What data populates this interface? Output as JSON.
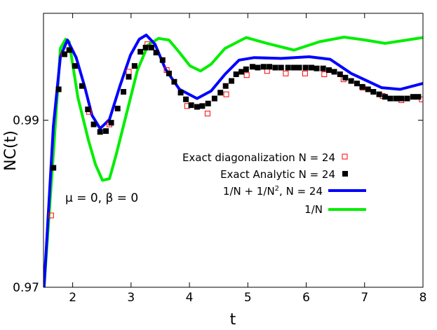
{
  "chart_data": {
    "type": "line",
    "xlabel": "t",
    "ylabel": "NC(t)",
    "xlim": [
      1.5,
      8
    ],
    "ylim": [
      0.97,
      1.0028
    ],
    "xticks": [
      2,
      3,
      4,
      5,
      6,
      7,
      8
    ],
    "yticks": [
      0.97,
      0.99
    ],
    "ytick_labels": [
      "0.97",
      "0.99"
    ],
    "grid": false,
    "legend_placement": "center-right",
    "annotation": "μ = 0, β = 0",
    "series": [
      {
        "name": "Exact diagonalization N = 24",
        "style": "open-square",
        "color": "#ff0000",
        "x": [
          1.63,
          1.85,
          2.28,
          2.63,
          2.96,
          3.28,
          3.61,
          3.96,
          4.31,
          4.63,
          4.98,
          5.33,
          5.65,
          5.98,
          6.31,
          6.64,
          6.97,
          7.31,
          7.63,
          7.98
        ],
        "y": [
          0.9786,
          0.9979,
          0.991,
          0.9895,
          0.9958,
          0.9991,
          0.996,
          0.9917,
          0.9908,
          0.9931,
          0.9954,
          0.9959,
          0.9956,
          0.9956,
          0.9955,
          0.9949,
          0.9939,
          0.9929,
          0.9924,
          0.9925
        ]
      },
      {
        "name": "Exact Analytic N = 24",
        "style": "filled-square",
        "color": "#000000",
        "x": [
          1.67,
          1.76,
          1.86,
          1.94,
          2.04,
          2.16,
          2.26,
          2.36,
          2.47,
          2.57,
          2.66,
          2.77,
          2.87,
          2.96,
          3.06,
          3.16,
          3.25,
          3.35,
          3.43,
          3.54,
          3.65,
          3.74,
          3.85,
          3.94,
          4.03,
          4.13,
          4.22,
          4.32,
          4.43,
          4.53,
          4.62,
          4.72,
          4.8,
          4.89,
          4.97,
          5.08,
          5.17,
          5.27,
          5.37,
          5.47,
          5.57,
          5.69,
          5.79,
          5.88,
          5.99,
          6.09,
          6.18,
          6.29,
          6.39,
          6.48,
          6.58,
          6.67,
          6.77,
          6.87,
          6.96,
          7.06,
          7.15,
          7.25,
          7.35,
          7.44,
          7.54,
          7.63,
          7.73,
          7.83,
          7.92
        ],
        "y": [
          0.9843,
          0.9937,
          0.9979,
          0.9984,
          0.9965,
          0.9941,
          0.9913,
          0.9895,
          0.9886,
          0.9887,
          0.9897,
          0.9914,
          0.9934,
          0.9952,
          0.9965,
          0.9982,
          0.9987,
          0.9987,
          0.9981,
          0.9972,
          0.9956,
          0.9946,
          0.9933,
          0.9925,
          0.9918,
          0.9916,
          0.9917,
          0.992,
          0.9926,
          0.9933,
          0.9941,
          0.9947,
          0.9955,
          0.9958,
          0.9961,
          0.9964,
          0.9963,
          0.9964,
          0.9964,
          0.9963,
          0.9963,
          0.9963,
          0.9963,
          0.9963,
          0.9963,
          0.9963,
          0.9962,
          0.9962,
          0.996,
          0.9958,
          0.9955,
          0.9951,
          0.9947,
          0.9944,
          0.994,
          0.9937,
          0.9934,
          0.9931,
          0.9928,
          0.9926,
          0.9926,
          0.9926,
          0.9926,
          0.9928,
          0.9928
        ]
      },
      {
        "name": "1/N + 1/N^2, N = 24",
        "name_parts": [
          "1/N + 1/N",
          "2",
          ", N = 24"
        ],
        "style": "line",
        "color": "#0000ff",
        "x": [
          1.51,
          1.67,
          1.79,
          1.91,
          2.06,
          2.21,
          2.33,
          2.47,
          2.63,
          2.81,
          2.99,
          3.14,
          3.26,
          3.41,
          3.59,
          3.83,
          4.13,
          4.37,
          4.61,
          4.85,
          5.11,
          5.57,
          6.05,
          6.41,
          6.77,
          7.29,
          7.61,
          8.0
        ],
        "y": [
          0.97,
          0.9893,
          0.9976,
          0.9996,
          0.9975,
          0.9939,
          0.9906,
          0.989,
          0.9901,
          0.9941,
          0.9978,
          0.9997,
          1.0002,
          0.9991,
          0.9961,
          0.9937,
          0.9926,
          0.9935,
          0.9955,
          0.9972,
          0.9975,
          0.9974,
          0.9976,
          0.9973,
          0.9956,
          0.9939,
          0.9937,
          0.9944
        ]
      },
      {
        "name": "1/N",
        "style": "line",
        "color": "#00ee00",
        "x": [
          1.51,
          1.67,
          1.79,
          1.88,
          1.94,
          2.09,
          2.27,
          2.39,
          2.51,
          2.63,
          2.75,
          2.93,
          3.11,
          3.29,
          3.47,
          3.65,
          3.83,
          4.01,
          4.19,
          4.37,
          4.61,
          4.97,
          5.33,
          5.79,
          6.23,
          6.65,
          7.01,
          7.35,
          8.0
        ],
        "y": [
          0.97,
          0.986,
          0.9986,
          0.9997,
          0.9994,
          0.9927,
          0.9876,
          0.9847,
          0.9828,
          0.983,
          0.986,
          0.991,
          0.996,
          0.999,
          0.9998,
          0.9996,
          0.9981,
          0.9965,
          0.9959,
          0.9967,
          0.9986,
          0.9999,
          0.9992,
          0.9984,
          0.9994,
          0.99995,
          0.9996,
          0.9992,
          0.9999
        ]
      }
    ]
  }
}
